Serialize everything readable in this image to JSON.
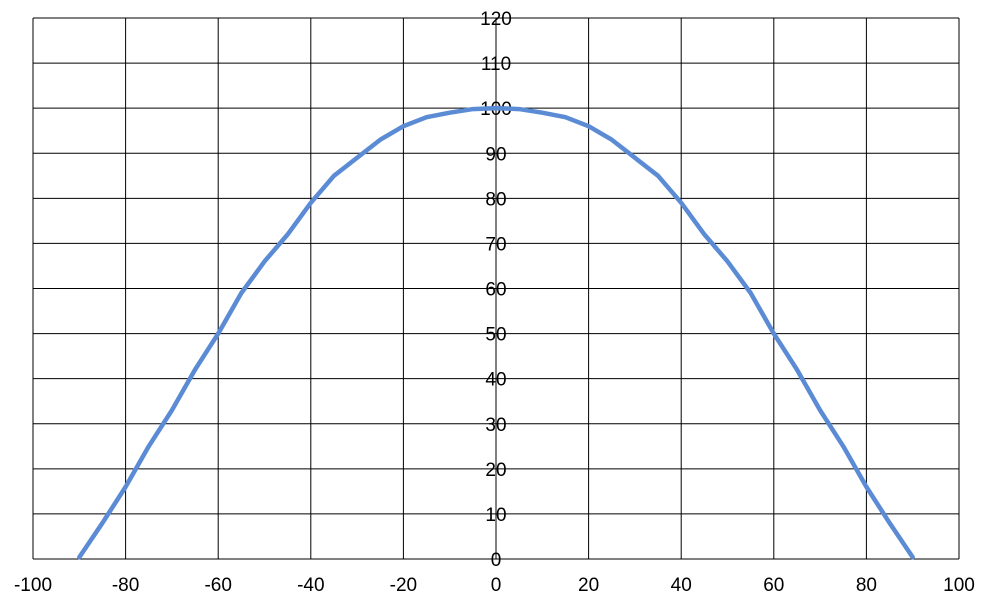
{
  "chart_data": {
    "type": "line",
    "title": "",
    "xlabel": "",
    "ylabel": "",
    "xlim": [
      -100,
      100
    ],
    "ylim": [
      0,
      120
    ],
    "x_ticks": [
      "-100",
      "-80",
      "-60",
      "-40",
      "-20",
      "0",
      "20",
      "40",
      "60",
      "80",
      "100"
    ],
    "y_ticks": [
      "0",
      "10",
      "20",
      "30",
      "40",
      "50",
      "60",
      "70",
      "80",
      "90",
      "100",
      "110",
      "120"
    ],
    "grid": true,
    "legend": "none",
    "series": [
      {
        "color": "#5b8bd4",
        "x": [
          -90,
          -85,
          -80,
          -75,
          -70,
          -65,
          -60,
          -55,
          -50,
          -45,
          -40,
          -35,
          -30,
          -25,
          -20,
          -15,
          -10,
          -5,
          0,
          5,
          10,
          15,
          20,
          25,
          30,
          35,
          40,
          45,
          50,
          55,
          60,
          65,
          70,
          75,
          80,
          85,
          90
        ],
        "y": [
          0.4,
          8,
          16,
          25,
          33,
          42,
          50,
          59,
          66,
          72,
          79,
          85,
          89,
          93,
          96,
          98,
          99,
          99.8,
          100,
          99.8,
          99,
          98,
          96,
          93,
          89,
          85,
          79,
          72,
          66,
          59,
          50,
          42,
          33,
          25,
          16,
          8,
          0.4
        ]
      }
    ]
  }
}
